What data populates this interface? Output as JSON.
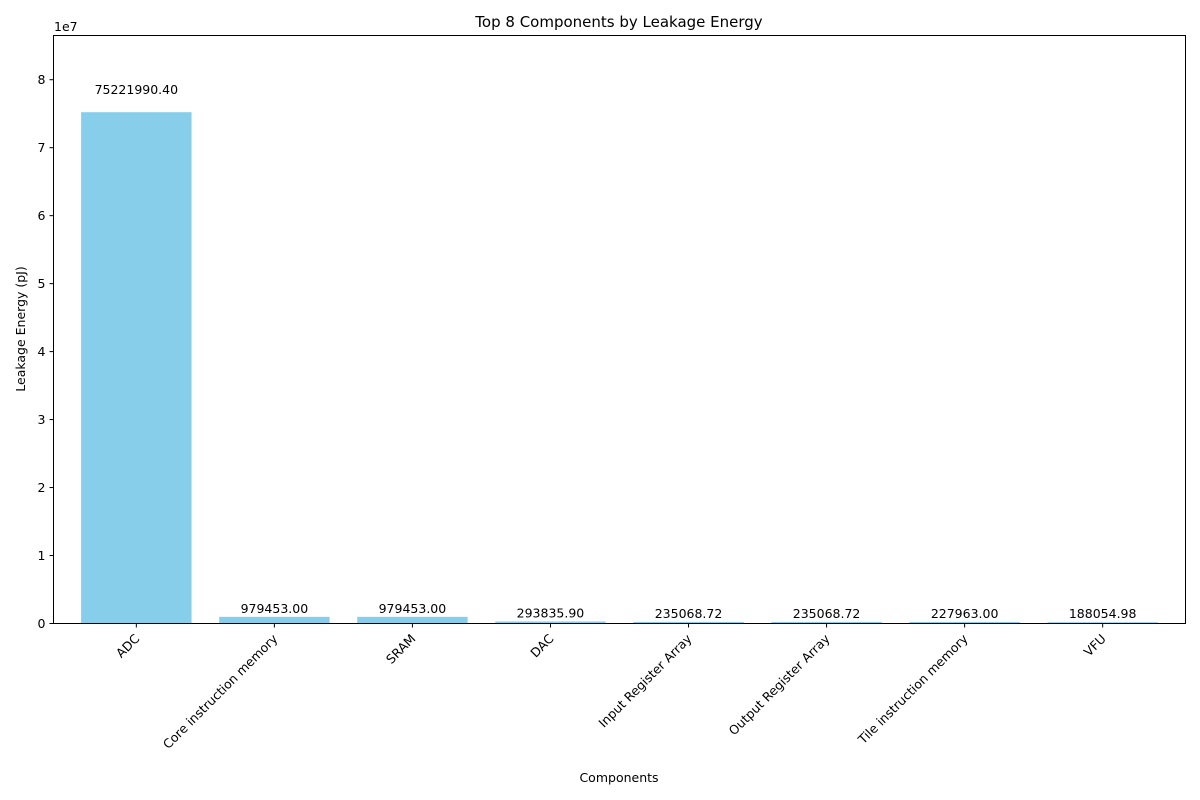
{
  "chart_data": {
    "type": "bar",
    "title": "Top 8 Components by Leakage Energy",
    "xlabel": "Components",
    "ylabel": "Leakage Energy (pJ)",
    "scale_label": "1e7",
    "ylim": [
      0,
      86505288.96
    ],
    "yticks": [
      0,
      1,
      2,
      3,
      4,
      5,
      6,
      7,
      8
    ],
    "ytick_multiplier": 10000000,
    "bar_color": "#87ceeb",
    "categories": [
      "ADC",
      "Core instruction memory",
      "SRAM",
      "DAC",
      "Input Register Array",
      "Output Register Array",
      "Tile instruction memory",
      "VFU"
    ],
    "values": [
      75221990.4,
      979453.0,
      979453.0,
      293835.9,
      235068.72,
      235068.72,
      227963.0,
      188054.98
    ],
    "value_labels": [
      "75221990.40",
      "979453.00",
      "979453.00",
      "293835.90",
      "235068.72",
      "235068.72",
      "227963.00",
      "188054.98"
    ],
    "grid": false,
    "legend": "none"
  }
}
